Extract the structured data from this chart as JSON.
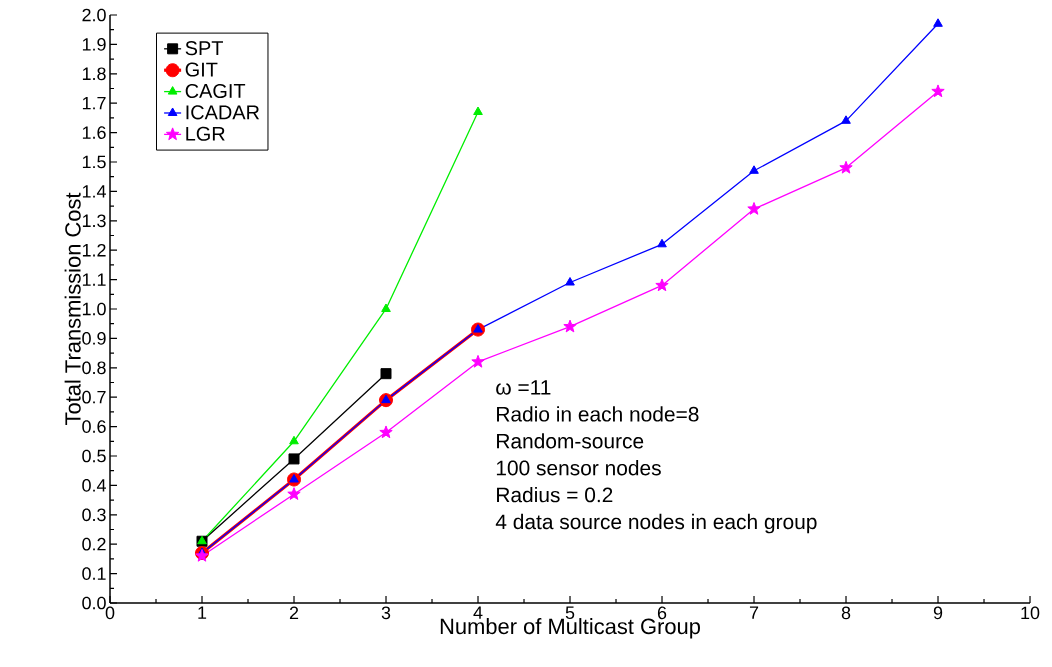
{
  "chart_data": {
    "type": "line",
    "xlabel": "Number of Multicast Group",
    "ylabel": "Total Transmission Cost",
    "x": [
      1,
      2,
      3,
      4,
      5,
      6,
      7,
      8,
      9
    ],
    "series": [
      {
        "name": "SPT",
        "color": "#000000",
        "marker": "square",
        "values": [
          0.21,
          0.49,
          0.78,
          null,
          null,
          null,
          null,
          null,
          null
        ]
      },
      {
        "name": "GIT",
        "color": "#ff0000",
        "marker": "circle",
        "values": [
          0.17,
          0.42,
          0.69,
          0.93,
          null,
          null,
          null,
          null,
          null
        ]
      },
      {
        "name": "CAGIT",
        "color": "#00ee00",
        "marker": "triangle",
        "values": [
          0.21,
          0.55,
          1.0,
          1.67,
          null,
          null,
          null,
          null,
          null
        ]
      },
      {
        "name": "ICADAR",
        "color": "#0000ff",
        "marker": "triangle",
        "values": [
          0.17,
          0.42,
          0.69,
          0.93,
          1.09,
          1.22,
          1.47,
          1.64,
          1.97
        ]
      },
      {
        "name": "LGR",
        "color": "#ff00ff",
        "marker": "star",
        "values": [
          0.16,
          0.37,
          0.58,
          0.82,
          0.94,
          1.08,
          1.34,
          1.48,
          1.74
        ]
      }
    ],
    "xlim": [
      0,
      10
    ],
    "xticks": [
      0,
      1,
      2,
      3,
      4,
      5,
      6,
      7,
      8,
      9,
      10
    ],
    "ylim": [
      0,
      2.0
    ],
    "yticks": [
      {
        "value": 0,
        "label": "0.0"
      },
      0.1,
      0.2,
      0.3,
      0.4,
      0.5,
      0.6,
      0.7,
      0.8,
      0.9,
      {
        "value": 1,
        "label": "1.0"
      },
      1.1,
      1.2,
      1.3,
      1.4,
      1.5,
      1.6,
      1.7,
      1.8,
      1.9,
      {
        "value": 2,
        "label": "2.0"
      }
    ],
    "legend": "top left",
    "grid": false,
    "line_style": "solid",
    "annotations": [
      "ω =11",
      "Radio in each node=8",
      "Random-source",
      "100 sensor nodes",
      "Radius = 0.2",
      "4 data source nodes in each group"
    ]
  }
}
